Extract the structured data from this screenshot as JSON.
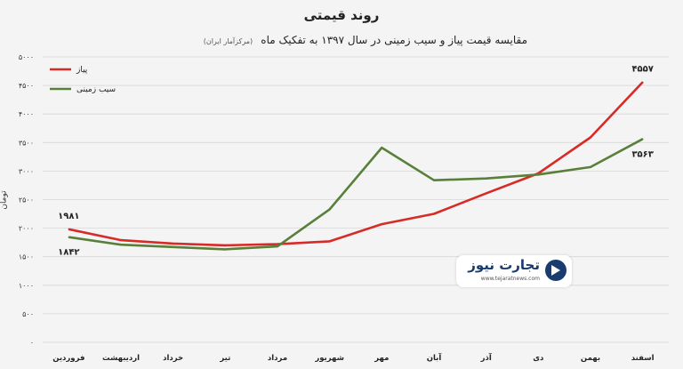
{
  "chart_data": {
    "type": "line",
    "title": "روند قیمتی",
    "subtitle": "مقایسه قیمت پیاز و سیب زمینی در سال ۱۳۹۷ به تفکیک ماه",
    "source_note": "(مرکزآمار ایران)",
    "ylabel": "تومان",
    "xlabel": "",
    "ylim": [
      0,
      5000
    ],
    "yticks": [
      "۰",
      "۵۰۰",
      "۱۰۰۰",
      "۱۵۰۰",
      "۲۰۰۰",
      "۲۵۰۰",
      "۳۰۰۰",
      "۳۵۰۰",
      "۴۰۰۰",
      "۴۵۰۰",
      "۵۰۰۰"
    ],
    "categories": [
      "فروردین",
      "اردیبهشت",
      "خرداد",
      "تیر",
      "مرداد",
      "شهریور",
      "مهر",
      "آبان",
      "آذر",
      "دی",
      "بهمن",
      "اسفند"
    ],
    "legend_position": "top-left",
    "grid": true,
    "series": [
      {
        "name": "پیاز",
        "color": "#d62b27",
        "values": [
          1981,
          1790,
          1730,
          1700,
          1720,
          1770,
          2070,
          2250,
          2610,
          2960,
          3590,
          4557
        ],
        "labels": [
          {
            "index": 0,
            "text": "۱۹۸۱"
          },
          {
            "index": 11,
            "text": "۴۵۵۷"
          }
        ]
      },
      {
        "name": "سیب زمینی",
        "color": "#58803a",
        "values": [
          1842,
          1710,
          1670,
          1630,
          1680,
          2330,
          3410,
          2840,
          2870,
          2940,
          3070,
          3563
        ],
        "labels": [
          {
            "index": 0,
            "text": "۱۸۴۲"
          },
          {
            "index": 11,
            "text": "۳۵۶۳"
          }
        ]
      }
    ]
  },
  "logo": {
    "name": "تجارت نیوز",
    "url": "www.tejaratnews.com"
  }
}
